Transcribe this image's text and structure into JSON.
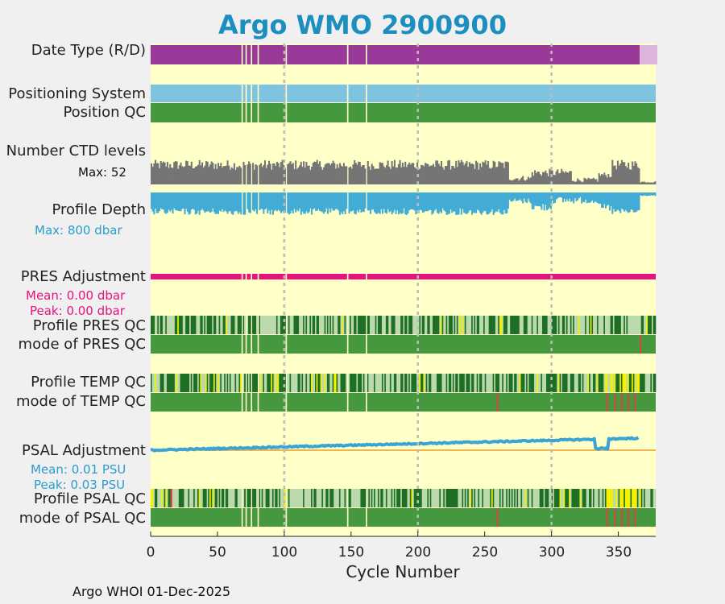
{
  "chart_data": {
    "type": "timeline-strips",
    "title": "Argo WMO 2900900",
    "xlabel": "Cycle Number",
    "xlim": [
      0,
      378
    ],
    "x_ticks": [
      "0",
      "50",
      "100",
      "150",
      "200",
      "250",
      "300",
      "350"
    ],
    "x_tick_values": [
      0,
      50,
      100,
      150,
      200,
      250,
      300,
      350
    ],
    "dashed_gridlines_at": [
      100,
      200,
      300
    ],
    "rows": {
      "date_type": {
        "label": "Date Type (R/D)"
      },
      "positioning": {
        "label": "Positioning System"
      },
      "position_qc": {
        "label": "Position QC"
      },
      "ctd_levels": {
        "label": "Number CTD levels",
        "max_text": "Max: 52",
        "max": 52
      },
      "profile_depth": {
        "label": "Profile Depth",
        "max_text": "Max:  800 dbar",
        "max": 800
      },
      "pres_adj": {
        "label": "PRES Adjustment",
        "mean_text": "Mean: 0.00 dbar",
        "peak_text": "Peak: 0.00 dbar"
      },
      "pres_qc": {
        "label": "Profile PRES QC",
        "label2": "mode of PRES QC"
      },
      "temp_qc": {
        "label": "Profile TEMP QC",
        "label2": "mode of TEMP QC"
      },
      "psal_adj": {
        "label": "PSAL Adjustment",
        "mean_text": "Mean: 0.01 PSU",
        "peak_text": "Peak: 0.03 PSU"
      },
      "psal_qc": {
        "label": "Profile PSAL QC",
        "label2": "mode of PSAL QC"
      }
    },
    "footer": "Argo WHOI 01-Dec-2025",
    "colors": {
      "background": "#ffffc8",
      "realtime": "#9a3a98",
      "delayed": "#dcb4dc",
      "positioning": "#7ec4e0",
      "qc_good": "#46983f",
      "qc_dark": "#1d6f24",
      "qc_light": "#bcd9ad",
      "qc_yellow": "#f4f000",
      "qc_red": "#e0403c",
      "ctd": "#757575",
      "depth": "#42acd6",
      "pres_adj": "#e8127e",
      "psal_adj": "#3aa4d4",
      "psal_ref": "#f0b450",
      "accent_title": "#1c8fc0"
    },
    "missing_cycles": [
      68,
      71,
      75,
      80,
      101,
      147,
      161
    ],
    "delayed_mode_from_cycle": 366,
    "last_cycle": 377
  }
}
